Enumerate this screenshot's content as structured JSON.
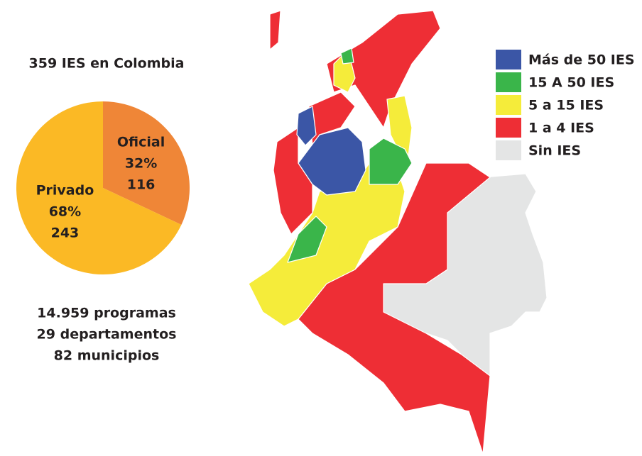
{
  "chart_data": {
    "type": "pie",
    "title": "359 IES en Colombia",
    "categories": [
      "Oficial",
      "Privado"
    ],
    "values": [
      32,
      68
    ],
    "value_labels": [
      "32%",
      "68%"
    ],
    "counts": [
      116,
      243
    ],
    "colors": [
      "#ef8637",
      "#fbb925"
    ]
  },
  "notes": [
    "14.959 programas",
    "29 departamentos",
    "82 municipios"
  ],
  "map": {
    "legend": [
      {
        "label": "Más de 50 IES",
        "color": "#3b56a6"
      },
      {
        "label": "15 A 50 IES",
        "color": "#3ab54a"
      },
      {
        "label": "5 a 15 IES",
        "color": "#f5ec3a"
      },
      {
        "label": "1 a 4 IES",
        "color": "#ee2e35"
      },
      {
        "label": "Sin IES",
        "color": "#e4e5e5"
      }
    ]
  }
}
